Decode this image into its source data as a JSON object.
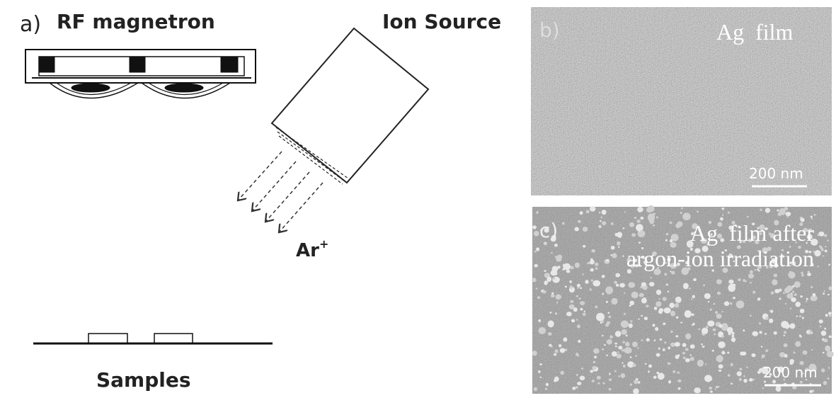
{
  "panel_a": {
    "label": "a)",
    "magnetron": "RF magnetron",
    "source": "Ion Source",
    "ion": {
      "text": "Ar",
      "superscript": "+"
    },
    "samples": "Samples"
  },
  "panel_b": {
    "label": "b)",
    "caption": "Ag  film",
    "scale_bar": "200 nm"
  },
  "panel_c": {
    "label": "c)",
    "caption_lines": [
      "Ag  film after",
      "argon-ion irradiation"
    ],
    "scale_bar": "200 nm"
  }
}
